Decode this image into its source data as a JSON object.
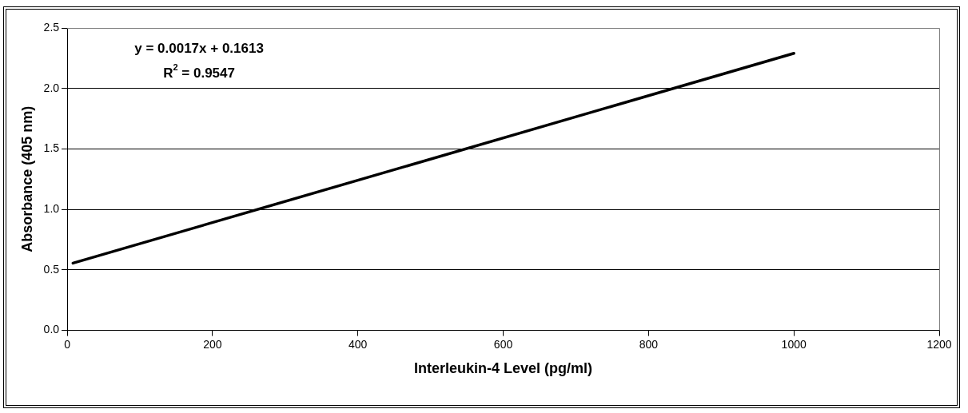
{
  "chart_data": {
    "type": "line",
    "xlabel": "Interleukin-4 Level (pg/ml)",
    "ylabel": "Absorbance (405 nm)",
    "annotations": [
      "y = 0.0017x + 0.1613",
      "R$^{2}$ = 0.9547"
    ],
    "x": [
      8,
      1000
    ],
    "series": [
      {
        "color": "#000000",
        "values": [
          0.556,
          2.29
        ]
      }
    ],
    "xlim": [
      0,
      1200
    ],
    "xticks": [
      0,
      200,
      400,
      600,
      800,
      1000,
      1200
    ],
    "ylim": [
      0,
      2.5
    ],
    "yticks": [
      {
        "value": 0,
        "label": "0.0"
      },
      {
        "value": 0.5,
        "label": "0.5"
      },
      {
        "value": 1,
        "label": "1.0"
      },
      {
        "value": 1.5,
        "label": "1.5"
      },
      {
        "value": 2,
        "label": "2.0"
      },
      {
        "value": 2.5,
        "label": "2.5"
      }
    ],
    "grid": "y",
    "legend": false
  }
}
